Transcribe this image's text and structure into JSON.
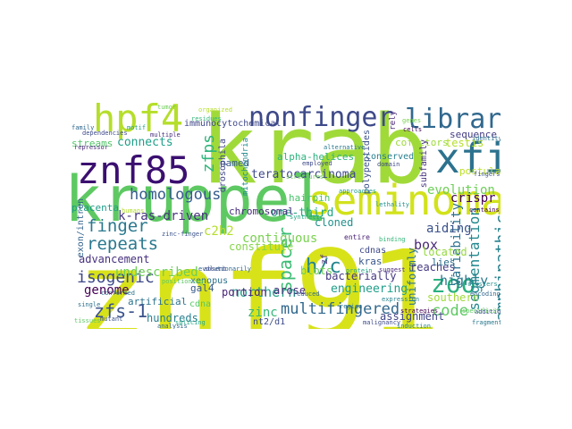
{
  "words": [
    {
      "text": "znf91",
      "color": "#d8e219"
    },
    {
      "text": "krab",
      "color": "#a0da39"
    },
    {
      "text": "kruppel",
      "color": "#5ec962"
    },
    {
      "text": "seminomas",
      "color": "#d2e21b"
    },
    {
      "text": "znf85",
      "color": "#3b0f70"
    },
    {
      "text": "hpf4",
      "color": "#b5de2b"
    },
    {
      "text": "nonfinger",
      "color": "#3e4a89"
    },
    {
      "text": "library",
      "color": "#31688e"
    },
    {
      "text": "xfin",
      "color": "#2c728e"
    },
    {
      "text": "homologous",
      "color": "#365c8d"
    },
    {
      "text": "k-ras-driven",
      "color": "#46327e"
    },
    {
      "text": "finger",
      "color": "#2a788e"
    },
    {
      "text": "repeats",
      "color": "#2a788e"
    },
    {
      "text": "isogenic",
      "color": "#3e4989"
    },
    {
      "text": "zfs-1",
      "color": "#3b528b"
    },
    {
      "text": "genome",
      "color": "#440154"
    },
    {
      "text": "undescribed",
      "color": "#6ece58"
    },
    {
      "text": "multifingered",
      "color": "#31688e"
    },
    {
      "text": "northern",
      "color": "#1f9e89"
    },
    {
      "text": "h/c",
      "color": "#25858e"
    },
    {
      "text": "spacer",
      "color": "#3dbc74"
    },
    {
      "text": "zoo",
      "color": "#2ab07f"
    },
    {
      "text": "code",
      "color": "#5ec962"
    },
    {
      "text": "amphipathic",
      "color": "#26828e"
    },
    {
      "text": "segmentation",
      "color": "#23888e"
    },
    {
      "text": "variability",
      "color": "#2c728e"
    },
    {
      "text": "teratocarcinoma",
      "color": "#3e4a89"
    },
    {
      "text": "crispr",
      "color": "#440154"
    },
    {
      "text": "testis",
      "color": "#b5de2b"
    },
    {
      "text": "evolution",
      "color": "#6ece58"
    },
    {
      "text": "aiding",
      "color": "#3b528b"
    },
    {
      "text": "box",
      "color": "#482878"
    },
    {
      "text": "highly",
      "color": "#2a788e"
    },
    {
      "text": "uniformly",
      "color": "#2c728e"
    },
    {
      "text": "engineering",
      "color": "#1f9e89"
    },
    {
      "text": "zfps",
      "color": "#31b57b"
    },
    {
      "text": "connects",
      "color": "#1f9e89"
    },
    {
      "text": "contiguous",
      "color": "#7ad151"
    },
    {
      "text": "constitute",
      "color": "#86d549"
    },
    {
      "text": "one-third",
      "color": "#22a884"
    },
    {
      "text": "cloned",
      "color": "#21918c"
    },
    {
      "text": "chromosomal",
      "color": "#472d7b"
    },
    {
      "text": "c2h2",
      "color": "#b5de2b"
    },
    {
      "text": "zinc",
      "color": "#35b779"
    },
    {
      "text": "hundreds",
      "color": "#277f8e"
    },
    {
      "text": "portion",
      "color": "#482576"
    },
    {
      "text": "arose",
      "color": "#472c7a"
    },
    {
      "text": "blots",
      "color": "#6ece58"
    },
    {
      "text": "assignment",
      "color": "#414487"
    },
    {
      "text": "southern",
      "color": "#9fda3a"
    },
    {
      "text": "reaches",
      "color": "#443a83"
    },
    {
      "text": "located",
      "color": "#95d840"
    },
    {
      "text": "lies",
      "color": "#2e6f8e"
    },
    {
      "text": "cdnas",
      "color": "#3e4989"
    },
    {
      "text": "kras",
      "color": "#39568c"
    },
    {
      "text": "advancement",
      "color": "#46307e"
    },
    {
      "text": "placenta",
      "color": "#1e9c89"
    },
    {
      "text": "streams",
      "color": "#52c569"
    },
    {
      "text": "conserved",
      "color": "#277f8e"
    },
    {
      "text": "cofactors",
      "color": "#9dd93b"
    },
    {
      "text": "postulated",
      "color": "#bddf26"
    },
    {
      "text": "sequence",
      "color": "#433d84"
    },
    {
      "text": "named",
      "color": "#365d8d"
    },
    {
      "text": "alpha-helices",
      "color": "#2db27d"
    },
    {
      "text": "hairpin",
      "color": "#4ac16d"
    },
    {
      "text": "polypeptides",
      "color": "#3b528b"
    },
    {
      "text": "mitochondria",
      "color": "#228b8d"
    },
    {
      "text": "immunocytochemical",
      "color": "#3f4889"
    },
    {
      "text": "bacterially",
      "color": "#453781"
    },
    {
      "text": "gal4",
      "color": "#38598c"
    },
    {
      "text": "xenopus",
      "color": "#2d708e"
    },
    {
      "text": "artificial",
      "color": "#2c738e"
    },
    {
      "text": "cdna",
      "color": "#58c765"
    },
    {
      "text": "subfamily",
      "color": "#46327e"
    },
    {
      "text": "exon/intron",
      "color": "#33638d"
    },
    {
      "text": "drosophila",
      "color": "#404688"
    },
    {
      "text": "rely",
      "color": "#482475"
    },
    {
      "text": "nt2/d1",
      "color": "#3e4c8a"
    },
    {
      "text": "zf",
      "color": "#472a7a"
    },
    {
      "text": "entire",
      "color": "#482173"
    },
    {
      "text": "family",
      "color": "#31688e"
    },
    {
      "text": "region",
      "color": "#2a788e"
    },
    {
      "text": "protein",
      "color": "#22a884"
    },
    {
      "text": "genes",
      "color": "#7ad151"
    },
    {
      "text": "cells",
      "color": "#440154"
    },
    {
      "text": "fingers",
      "color": "#3b528b"
    },
    {
      "text": "clusters",
      "color": "#21918c"
    },
    {
      "text": "specificity",
      "color": "#5ec962"
    },
    {
      "text": "encoding",
      "color": "#31688e"
    },
    {
      "text": "identity",
      "color": "#2c728e"
    },
    {
      "text": "domain",
      "color": "#3e4989"
    },
    {
      "text": "humans",
      "color": "#b5de2b"
    },
    {
      "text": "fragments",
      "color": "#2a788e"
    },
    {
      "text": "repressor",
      "color": "#482878"
    },
    {
      "text": "motif",
      "color": "#1f9e89"
    },
    {
      "text": "tumor",
      "color": "#6ece58"
    },
    {
      "text": "binding",
      "color": "#35b779"
    },
    {
      "text": "analysis",
      "color": "#31688e"
    },
    {
      "text": "expression",
      "color": "#26828e"
    },
    {
      "text": "malignancy",
      "color": "#3e4a89"
    },
    {
      "text": "strategies",
      "color": "#440154"
    },
    {
      "text": "mutant",
      "color": "#3b528b"
    },
    {
      "text": "splicing",
      "color": "#22a884"
    },
    {
      "text": "single",
      "color": "#2c728e"
    },
    {
      "text": "tissues",
      "color": "#5ec962"
    },
    {
      "text": "residues",
      "color": "#35b779"
    },
    {
      "text": "evolutionarily",
      "color": "#31688e"
    },
    {
      "text": "multiple",
      "color": "#472d7b"
    },
    {
      "text": "absent",
      "color": "#3e4989"
    },
    {
      "text": "induction",
      "color": "#26828e"
    },
    {
      "text": "addition",
      "color": "#3b528b"
    },
    {
      "text": "organized",
      "color": "#b5de2b"
    },
    {
      "text": "suggest",
      "color": "#482878"
    },
    {
      "text": "approaches",
      "color": "#1f9e89"
    },
    {
      "text": "alternative",
      "color": "#2a788e"
    },
    {
      "text": "employed",
      "color": "#3e4a89"
    },
    {
      "text": "structures",
      "color": "#6ece58"
    },
    {
      "text": "synthetic",
      "color": "#22a884"
    },
    {
      "text": "reduced",
      "color": "#31688e"
    },
    {
      "text": "dependencies",
      "color": "#3e4989"
    },
    {
      "text": "lethality",
      "color": "#21918c"
    },
    {
      "text": "contains",
      "color": "#440154"
    },
    {
      "text": "positioning",
      "color": "#5ec962"
    },
    {
      "text": "conformed",
      "color": "#2c728e"
    },
    {
      "text": "zinc-finger",
      "color": "#3b528b"
    }
  ]
}
